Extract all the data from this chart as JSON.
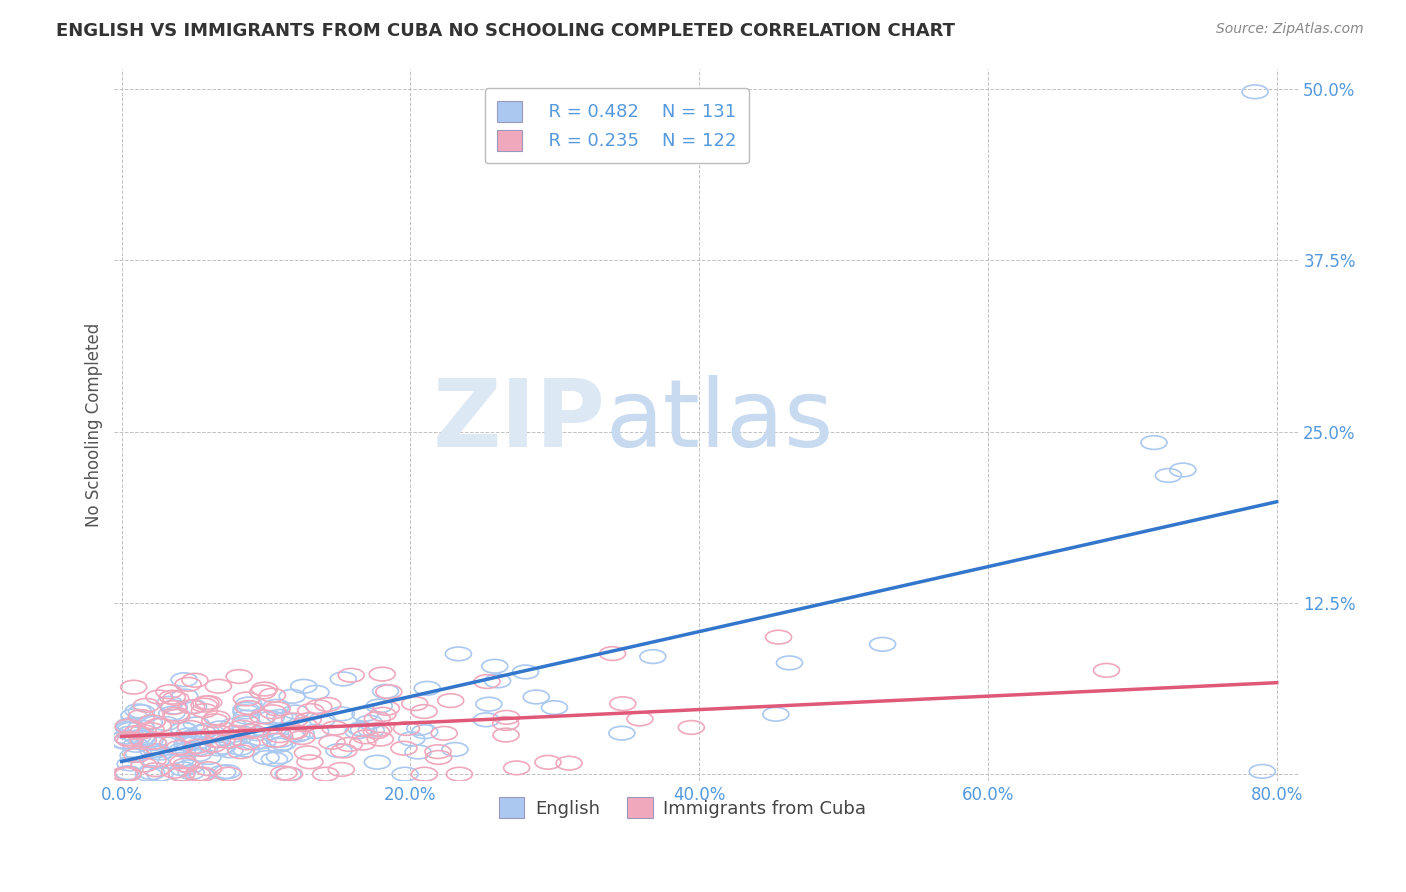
{
  "title": "ENGLISH VS IMMIGRANTS FROM CUBA NO SCHOOLING COMPLETED CORRELATION CHART",
  "source": "Source: ZipAtlas.com",
  "ylabel": "No Schooling Completed",
  "xlim": [
    -0.005,
    0.815
  ],
  "ylim": [
    -0.005,
    0.515
  ],
  "xticks": [
    0.0,
    0.2,
    0.4,
    0.6,
    0.8
  ],
  "xtick_labels": [
    "0.0%",
    "20.0%",
    "40.0%",
    "60.0%",
    "80.0%"
  ],
  "yticks": [
    0.0,
    0.125,
    0.25,
    0.375,
    0.5
  ],
  "ytick_labels": [
    "",
    "12.5%",
    "25.0%",
    "37.5%",
    "50.0%"
  ],
  "english_R": 0.482,
  "english_N": 131,
  "cuba_R": 0.235,
  "cuba_N": 122,
  "english_color": "#aac8f0",
  "cuba_color": "#f0a8bc",
  "english_line_color": "#3377cc",
  "cuba_line_color": "#e05878",
  "legend_label_english": "English",
  "legend_label_cuba": "Immigrants from Cuba",
  "watermark_zip": "ZIP",
  "watermark_atlas": "atlas",
  "background_color": "#ffffff",
  "title_color": "#333333",
  "source_color": "#888888",
  "tick_color": "#5599dd",
  "ylabel_color": "#555555"
}
